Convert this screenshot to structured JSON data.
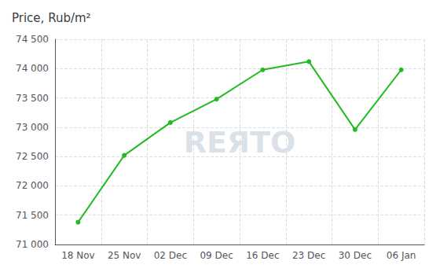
{
  "chart_data": {
    "type": "line",
    "title": "Price, Rub/m²",
    "categories": [
      "18 Nov",
      "25 Nov",
      "02 Dec",
      "09 Dec",
      "16 Dec",
      "23 Dec",
      "30 Dec",
      "06 Jan"
    ],
    "values": [
      71380,
      72520,
      73080,
      73480,
      73980,
      74120,
      72960,
      73980
    ],
    "color": "#22bb22",
    "marker": "circle",
    "ylim": [
      71000,
      74500
    ],
    "yticks": [
      {
        "value": 71000,
        "label": "71 000"
      },
      {
        "value": 71500,
        "label": "71 500"
      },
      {
        "value": 72000,
        "label": "72 000"
      },
      {
        "value": 72500,
        "label": "72 500"
      },
      {
        "value": 73000,
        "label": "73 000"
      },
      {
        "value": 73500,
        "label": "73 500"
      },
      {
        "value": 74000,
        "label": "74 000"
      },
      {
        "value": 74500,
        "label": "74 500"
      }
    ],
    "grid": true,
    "annotations": [
      "REЯTO"
    ]
  }
}
